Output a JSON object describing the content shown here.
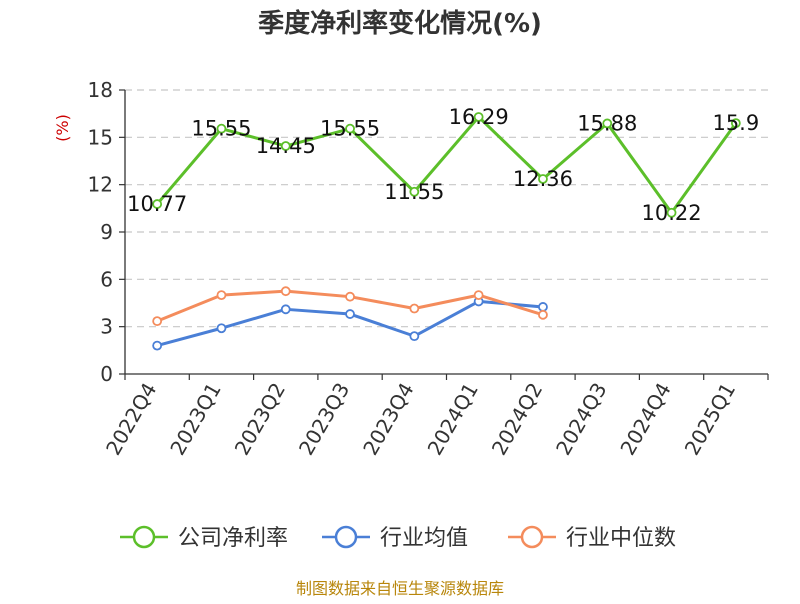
{
  "chart_data": {
    "type": "line",
    "title": "季度净利率变化情况(%)",
    "ylabel": "(%)",
    "xlabel": "",
    "ylim": [
      0,
      18
    ],
    "yticks": [
      0,
      3,
      6,
      9,
      12,
      15,
      18
    ],
    "grid": true,
    "legend_position": "bottom",
    "categories": [
      "2022Q4",
      "2023Q1",
      "2023Q2",
      "2023Q3",
      "2023Q4",
      "2024Q1",
      "2024Q2",
      "2024Q3",
      "2024Q4",
      "2025Q1"
    ],
    "series": [
      {
        "name": "公司净利率",
        "color": "#5cbf2a",
        "values": [
          10.77,
          15.55,
          14.45,
          15.55,
          11.55,
          16.29,
          12.36,
          15.88,
          10.22,
          15.9
        ],
        "labels": [
          "10.77",
          "15.55",
          "14.45",
          "15.55",
          "11.55",
          "16.29",
          "12.36",
          "15.88",
          "10.22",
          "15.9"
        ]
      },
      {
        "name": "行业均值",
        "color": "#4a7fd6",
        "values": [
          1.8,
          2.9,
          4.1,
          3.8,
          2.4,
          4.6,
          4.25,
          null,
          null,
          null
        ]
      },
      {
        "name": "行业中位数",
        "color": "#f48c5c",
        "values": [
          3.35,
          5.0,
          5.25,
          4.9,
          4.15,
          5.0,
          3.75,
          null,
          null,
          null
        ]
      }
    ],
    "source": "制图数据来自恒生聚源数据库"
  }
}
